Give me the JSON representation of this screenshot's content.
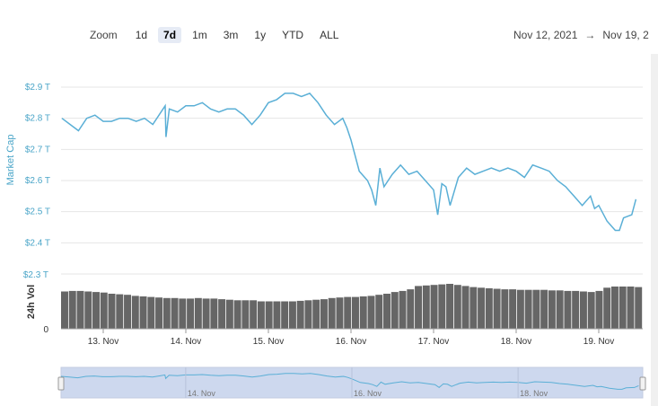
{
  "zoom": {
    "label": "Zoom",
    "buttons": [
      "1d",
      "7d",
      "1m",
      "3m",
      "1y",
      "YTD",
      "ALL"
    ],
    "active": "7d"
  },
  "date_range": {
    "from": "Nov 12, 2021",
    "arrow": "→",
    "to": "Nov 19, 2"
  },
  "colors": {
    "line": "#5aafd6",
    "volume": "#666666",
    "navigator_fill": "#cdd8ee",
    "axis_text": "#4aa5c8"
  },
  "chart_data": {
    "type": "line",
    "x_ticks": [
      "13. Nov",
      "14. Nov",
      "15. Nov",
      "16. Nov",
      "17. Nov",
      "18. Nov",
      "19. Nov"
    ],
    "market_cap": {
      "ylabel": "Market Cap",
      "ylim": [
        2.3,
        2.9
      ],
      "y_ticks": [
        "$2.4 T",
        "$2.5 T",
        "$2.6 T",
        "$2.7 T",
        "$2.8 T",
        "$2.9 T"
      ],
      "grid": true,
      "x": [
        12.5,
        12.6,
        12.7,
        12.8,
        12.9,
        13.0,
        13.1,
        13.2,
        13.3,
        13.4,
        13.5,
        13.6,
        13.7,
        13.75,
        13.76,
        13.8,
        13.9,
        14.0,
        14.1,
        14.2,
        14.3,
        14.4,
        14.5,
        14.6,
        14.7,
        14.8,
        14.9,
        15.0,
        15.1,
        15.2,
        15.3,
        15.4,
        15.5,
        15.6,
        15.7,
        15.8,
        15.9,
        15.95,
        16.0,
        16.1,
        16.2,
        16.25,
        16.3,
        16.35,
        16.4,
        16.5,
        16.6,
        16.7,
        16.8,
        16.9,
        17.0,
        17.05,
        17.1,
        17.15,
        17.2,
        17.3,
        17.4,
        17.5,
        17.6,
        17.7,
        17.8,
        17.9,
        18.0,
        18.1,
        18.2,
        18.3,
        18.4,
        18.5,
        18.6,
        18.7,
        18.8,
        18.9,
        18.95,
        19.0,
        19.1,
        19.2,
        19.25,
        19.3,
        19.4,
        19.45
      ],
      "y": [
        2.8,
        2.78,
        2.76,
        2.8,
        2.81,
        2.79,
        2.79,
        2.8,
        2.8,
        2.79,
        2.8,
        2.78,
        2.82,
        2.84,
        2.74,
        2.83,
        2.82,
        2.84,
        2.84,
        2.85,
        2.83,
        2.82,
        2.83,
        2.83,
        2.81,
        2.78,
        2.81,
        2.85,
        2.86,
        2.88,
        2.88,
        2.87,
        2.88,
        2.85,
        2.81,
        2.78,
        2.8,
        2.77,
        2.73,
        2.63,
        2.6,
        2.57,
        2.52,
        2.64,
        2.58,
        2.62,
        2.65,
        2.62,
        2.63,
        2.6,
        2.57,
        2.49,
        2.59,
        2.58,
        2.52,
        2.61,
        2.64,
        2.62,
        2.63,
        2.64,
        2.63,
        2.64,
        2.63,
        2.61,
        2.65,
        2.64,
        2.63,
        2.6,
        2.58,
        2.55,
        2.52,
        2.55,
        2.51,
        2.52,
        2.47,
        2.44,
        2.44,
        2.48,
        2.49,
        2.54
      ]
    },
    "volume": {
      "ylabel": "24h Vol",
      "y_ticks": [
        "0",
        "$2.3 T"
      ],
      "bars": [
        0.68,
        0.69,
        0.69,
        0.68,
        0.67,
        0.66,
        0.64,
        0.63,
        0.62,
        0.6,
        0.59,
        0.58,
        0.57,
        0.56,
        0.56,
        0.55,
        0.55,
        0.56,
        0.55,
        0.55,
        0.54,
        0.53,
        0.52,
        0.52,
        0.52,
        0.5,
        0.5,
        0.5,
        0.5,
        0.5,
        0.51,
        0.52,
        0.53,
        0.54,
        0.56,
        0.57,
        0.58,
        0.58,
        0.59,
        0.6,
        0.62,
        0.64,
        0.67,
        0.69,
        0.72,
        0.78,
        0.79,
        0.8,
        0.81,
        0.82,
        0.8,
        0.78,
        0.76,
        0.75,
        0.74,
        0.73,
        0.72,
        0.72,
        0.71,
        0.71,
        0.71,
        0.71,
        0.7,
        0.7,
        0.69,
        0.69,
        0.68,
        0.67,
        0.69,
        0.75,
        0.77,
        0.77,
        0.77,
        0.76
      ],
      "max": 1.0
    },
    "navigator": {
      "x_ticks": [
        "14. Nov",
        "16. Nov",
        "18. Nov"
      ]
    }
  }
}
